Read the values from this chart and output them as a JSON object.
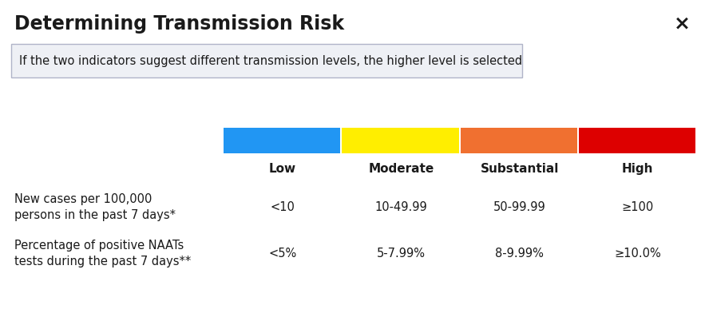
{
  "title": "Determining Transmission Risk",
  "subtitle": "If the two indicators suggest different transmission levels, the higher level is selected",
  "close_symbol": "×",
  "categories": [
    "Low",
    "Moderate",
    "Substantial",
    "High"
  ],
  "colors": [
    "#2196F3",
    "#FFEE00",
    "#F07030",
    "#DD0000"
  ],
  "row1_label_line1": "New cases per 100,000",
  "row1_label_line2": "persons in the past 7 days*",
  "row1_values": [
    "<10",
    "10-49.99",
    "50-99.99",
    "≥100"
  ],
  "row2_label_line1": "Percentage of positive NAATs",
  "row2_label_line2": "tests during the past 7 days**",
  "row2_values": [
    "<5%",
    "5-7.99%",
    "8-9.99%",
    "≥10.0%"
  ],
  "bg_color": "#ffffff",
  "text_color": "#1a1a1a",
  "subtitle_box_facecolor": "#eef0f5",
  "subtitle_box_edgecolor": "#b0b4c8"
}
